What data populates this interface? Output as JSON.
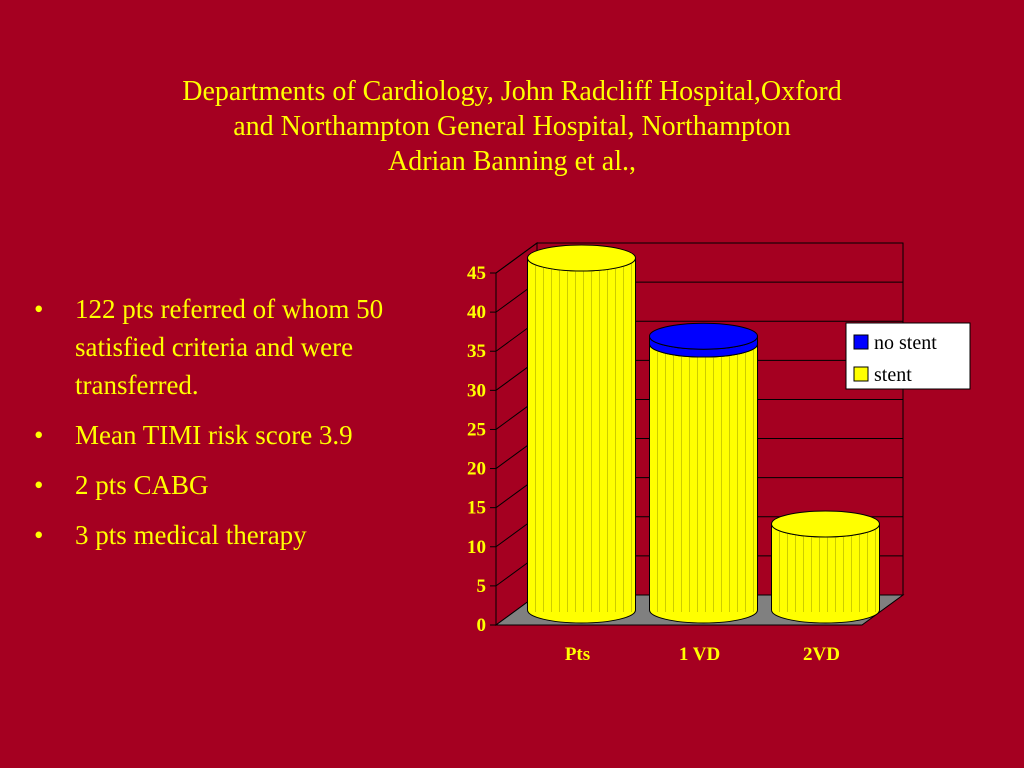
{
  "slide": {
    "title_lines": [
      "Departments of Cardiology, John Radcliff Hospital,Oxford",
      "and Northampton General Hospital, Northampton",
      "Adrian Banning et al.,"
    ],
    "bullets": [
      "122 pts referred of whom 50 satisfied criteria and were transferred.",
      "Mean TIMI risk score 3.9",
      "2 pts CABG",
      "3 pts medical therapy"
    ]
  },
  "colors": {
    "background": "#A50021",
    "text": "#FFFF00",
    "no_stent": "#0000FF",
    "stent": "#FFFF00",
    "floor": "#808080"
  },
  "chart_data": {
    "type": "bar",
    "categories": [
      "Pts",
      "1 VD",
      "2VD"
    ],
    "series": [
      {
        "name": "stent",
        "values": [
          45,
          34,
          11
        ]
      },
      {
        "name": "no stent",
        "values": [
          0,
          1,
          0
        ]
      }
    ],
    "yticks": [
      "0",
      "5",
      "10",
      "15",
      "20",
      "25",
      "30",
      "35",
      "40",
      "45"
    ],
    "ylim": [
      0,
      45
    ],
    "legend": {
      "position": "right",
      "entries": [
        "no stent",
        "stent"
      ]
    },
    "grid": true
  }
}
